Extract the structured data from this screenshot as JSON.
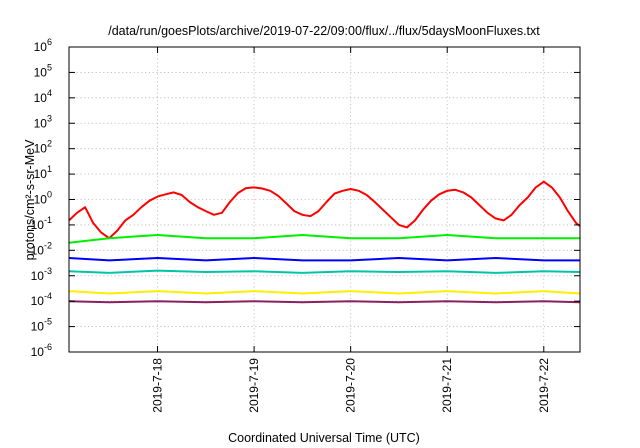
{
  "chart_data": {
    "type": "line",
    "title": "/data/run/goesPlots/archive/2019-07-22/09:00/flux/../flux/5daysMoonFluxes.txt",
    "xlabel": "Coordinated Universal Time (UTC)",
    "ylabel": "protons/cm²-s-sr-MeV",
    "yscale": "log",
    "ylim": [
      1e-06,
      1000000.0
    ],
    "xlim": [
      "2019-07-17 02:00",
      "2019-07-22 09:00"
    ],
    "grid": true,
    "legend": "none",
    "xticks": [
      "2019-7-18",
      "2019-7-19",
      "2019-7-20",
      "2019-7-21",
      "2019-7-22"
    ],
    "yticks": [
      "10-6",
      "10-5",
      "10-4",
      "10-3",
      "10-2",
      "10-1",
      "100",
      "101",
      "102",
      "103",
      "104",
      "105",
      "106"
    ],
    "series": [
      {
        "color": "#ff0000",
        "x": [
          "2019-07-17 02:00",
          "2019-07-17 04:00",
          "2019-07-17 06:00",
          "2019-07-17 08:00",
          "2019-07-17 10:00",
          "2019-07-17 12:00",
          "2019-07-17 14:00",
          "2019-07-17 16:00",
          "2019-07-17 18:00",
          "2019-07-17 20:00",
          "2019-07-17 22:00",
          "2019-07-18 00:00",
          "2019-07-18 02:00",
          "2019-07-18 04:00",
          "2019-07-18 06:00",
          "2019-07-18 08:00",
          "2019-07-18 10:00",
          "2019-07-18 12:00",
          "2019-07-18 14:00",
          "2019-07-18 16:00",
          "2019-07-18 18:00",
          "2019-07-18 20:00",
          "2019-07-18 22:00",
          "2019-07-19 00:00",
          "2019-07-19 02:00",
          "2019-07-19 04:00",
          "2019-07-19 06:00",
          "2019-07-19 08:00",
          "2019-07-19 10:00",
          "2019-07-19 12:00",
          "2019-07-19 14:00",
          "2019-07-19 16:00",
          "2019-07-19 18:00",
          "2019-07-19 20:00",
          "2019-07-19 22:00",
          "2019-07-20 00:00",
          "2019-07-20 02:00",
          "2019-07-20 04:00",
          "2019-07-20 06:00",
          "2019-07-20 08:00",
          "2019-07-20 10:00",
          "2019-07-20 12:00",
          "2019-07-20 14:00",
          "2019-07-20 16:00",
          "2019-07-20 18:00",
          "2019-07-20 20:00",
          "2019-07-20 22:00",
          "2019-07-21 00:00",
          "2019-07-21 02:00",
          "2019-07-21 04:00",
          "2019-07-21 06:00",
          "2019-07-21 08:00",
          "2019-07-21 10:00",
          "2019-07-21 12:00",
          "2019-07-21 14:00",
          "2019-07-21 16:00",
          "2019-07-21 18:00",
          "2019-07-21 20:00",
          "2019-07-21 22:00",
          "2019-07-22 00:00",
          "2019-07-22 02:00",
          "2019-07-22 04:00",
          "2019-07-22 06:00",
          "2019-07-22 08:00",
          "2019-07-22 09:00"
        ],
        "y": [
          0.15,
          0.3,
          0.5,
          0.12,
          0.05,
          0.03,
          0.06,
          0.15,
          0.25,
          0.5,
          0.9,
          1.3,
          1.6,
          1.9,
          1.5,
          0.8,
          0.5,
          0.35,
          0.25,
          0.3,
          0.8,
          1.8,
          2.8,
          3.0,
          2.7,
          2.2,
          1.4,
          0.7,
          0.35,
          0.25,
          0.22,
          0.35,
          0.8,
          1.7,
          2.2,
          2.6,
          2.2,
          1.5,
          0.8,
          0.4,
          0.2,
          0.1,
          0.08,
          0.15,
          0.4,
          0.9,
          1.6,
          2.2,
          2.4,
          1.9,
          1.2,
          0.6,
          0.3,
          0.18,
          0.15,
          0.25,
          0.6,
          1.2,
          3.0,
          5.0,
          3.0,
          1.2,
          0.35,
          0.12,
          0.09
        ]
      },
      {
        "color": "#00ee00",
        "x": [
          "2019-07-17 02:00",
          "2019-07-17 12:00",
          "2019-07-18 00:00",
          "2019-07-18 12:00",
          "2019-07-19 00:00",
          "2019-07-19 12:00",
          "2019-07-20 00:00",
          "2019-07-20 12:00",
          "2019-07-21 00:00",
          "2019-07-21 12:00",
          "2019-07-22 00:00",
          "2019-07-22 09:00"
        ],
        "y": [
          0.02,
          0.03,
          0.04,
          0.03,
          0.03,
          0.04,
          0.03,
          0.03,
          0.04,
          0.03,
          0.03,
          0.03
        ]
      },
      {
        "color": "#0000ff",
        "x": [
          "2019-07-17 02:00",
          "2019-07-17 12:00",
          "2019-07-18 00:00",
          "2019-07-18 12:00",
          "2019-07-19 00:00",
          "2019-07-19 12:00",
          "2019-07-20 00:00",
          "2019-07-20 12:00",
          "2019-07-21 00:00",
          "2019-07-21 12:00",
          "2019-07-22 00:00",
          "2019-07-22 09:00"
        ],
        "y": [
          0.005,
          0.004,
          0.005,
          0.004,
          0.005,
          0.004,
          0.004,
          0.005,
          0.004,
          0.005,
          0.004,
          0.004
        ]
      },
      {
        "color": "#00c4a8",
        "x": [
          "2019-07-17 02:00",
          "2019-07-17 12:00",
          "2019-07-18 00:00",
          "2019-07-18 12:00",
          "2019-07-19 00:00",
          "2019-07-19 12:00",
          "2019-07-20 00:00",
          "2019-07-20 12:00",
          "2019-07-21 00:00",
          "2019-07-21 12:00",
          "2019-07-22 00:00",
          "2019-07-22 09:00"
        ],
        "y": [
          0.0015,
          0.0013,
          0.0016,
          0.0014,
          0.0015,
          0.0013,
          0.0015,
          0.0014,
          0.0015,
          0.0013,
          0.0015,
          0.0014
        ]
      },
      {
        "color": "#ffee00",
        "x": [
          "2019-07-17 02:00",
          "2019-07-17 12:00",
          "2019-07-18 00:00",
          "2019-07-18 12:00",
          "2019-07-19 00:00",
          "2019-07-19 12:00",
          "2019-07-20 00:00",
          "2019-07-20 12:00",
          "2019-07-21 00:00",
          "2019-07-21 12:00",
          "2019-07-22 00:00",
          "2019-07-22 09:00"
        ],
        "y": [
          0.00025,
          0.0002,
          0.00025,
          0.0002,
          0.00025,
          0.0002,
          0.00025,
          0.0002,
          0.00025,
          0.0002,
          0.00025,
          0.0002
        ]
      },
      {
        "color": "#8b2060",
        "x": [
          "2019-07-17 02:00",
          "2019-07-17 12:00",
          "2019-07-18 00:00",
          "2019-07-18 12:00",
          "2019-07-19 00:00",
          "2019-07-19 12:00",
          "2019-07-20 00:00",
          "2019-07-20 12:00",
          "2019-07-21 00:00",
          "2019-07-21 12:00",
          "2019-07-22 00:00",
          "2019-07-22 09:00"
        ],
        "y": [
          0.0001,
          9e-05,
          0.0001,
          9e-05,
          0.0001,
          9e-05,
          0.0001,
          9e-05,
          0.0001,
          9e-05,
          0.0001,
          9e-05
        ]
      }
    ]
  }
}
